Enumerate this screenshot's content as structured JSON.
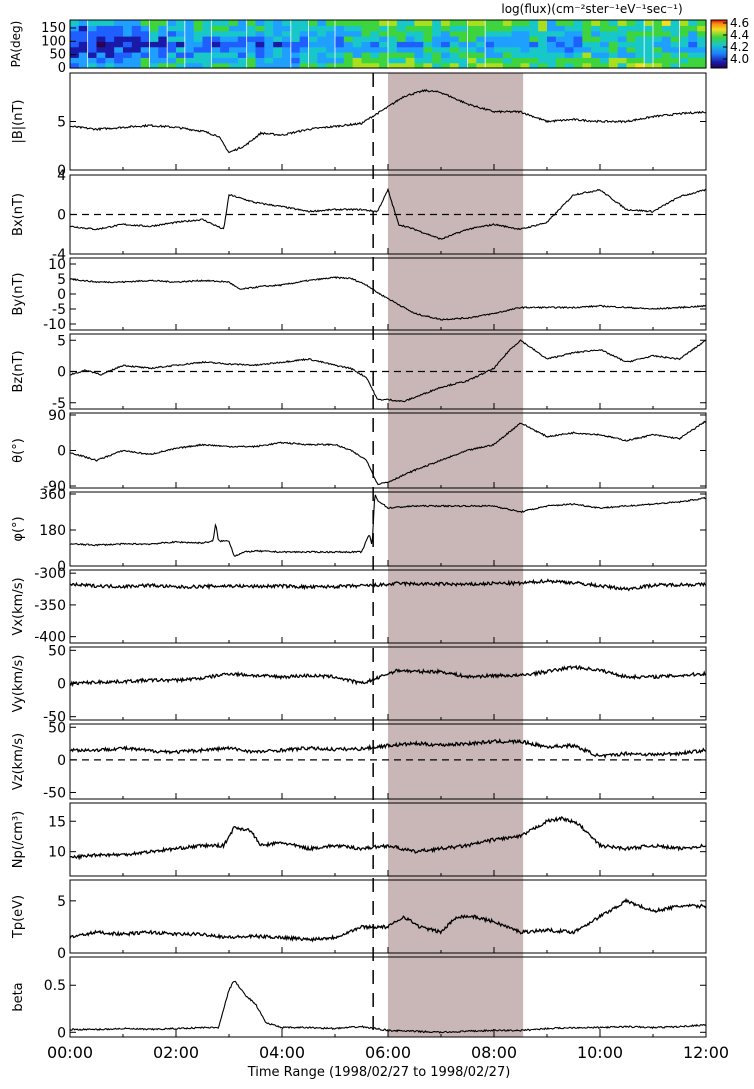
{
  "figure": {
    "colorbar_title": "log(flux)(cm⁻²ster⁻¹eV⁻¹sec⁻¹)",
    "colorbar_ticks": [
      4.0,
      4.2,
      4.4,
      4.6
    ],
    "colorbar_range": [
      3.85,
      4.65
    ],
    "xlabel": "Time Range (1998/02/27 to 1998/02/27)",
    "x_ticks": [
      "00:00",
      "02:00",
      "04:00",
      "06:00",
      "08:00",
      "10:00",
      "12:00"
    ],
    "x_range_hours": [
      0,
      12
    ],
    "shaded_interval_hours": [
      6.0,
      8.55
    ],
    "dashed_line_hour": 5.72
  },
  "chart_data": [
    {
      "type": "heatmap",
      "ylabel": "PA(deg)",
      "ylim": [
        0,
        180
      ],
      "yticks": [
        0,
        50,
        100,
        150
      ],
      "description_values": "pitch-angle distribution of electron flux, log scale 3.9–4.6"
    },
    {
      "type": "line",
      "ylabel": "|B|(nT)",
      "ylim": [
        0,
        10
      ],
      "yticks": [
        0,
        5
      ],
      "x": [
        0,
        0.5,
        1,
        1.5,
        2,
        2.5,
        2.8,
        3.0,
        3.3,
        3.6,
        4,
        4.5,
        5,
        5.5,
        5.7,
        6,
        6.3,
        6.7,
        7,
        7.5,
        8,
        8.5,
        9,
        9.5,
        10,
        10.5,
        11,
        11.5,
        12
      ],
      "y": [
        4.5,
        4.2,
        4.4,
        4.6,
        4.4,
        4.0,
        3.5,
        1.8,
        2.5,
        3.8,
        3.6,
        4.2,
        4.5,
        4.8,
        5.5,
        6.5,
        7.6,
        8.2,
        8.0,
        6.8,
        6.0,
        6.0,
        5.0,
        5.2,
        5.0,
        5.0,
        5.5,
        5.8,
        6.0
      ]
    },
    {
      "type": "line",
      "ylabel": "Bx(nT)",
      "ylim": [
        -4,
        4
      ],
      "yticks": [
        -4,
        0,
        4
      ],
      "zero_line": true,
      "x": [
        0,
        0.5,
        1,
        1.5,
        2,
        2.5,
        2.9,
        3.0,
        3.5,
        4,
        4.5,
        5,
        5.5,
        5.8,
        6.0,
        6.2,
        6.5,
        7,
        7.5,
        8,
        8.5,
        9,
        9.5,
        10,
        10.5,
        11,
        11.5,
        12
      ],
      "y": [
        -1.2,
        -1.5,
        -1.0,
        -1.2,
        -0.8,
        -0.5,
        -1.5,
        2.0,
        1.2,
        0.8,
        0.3,
        0.5,
        0.5,
        0.3,
        2.5,
        -1.0,
        -1.5,
        -2.5,
        -1.5,
        -1.0,
        -1.5,
        -0.8,
        2.0,
        2.5,
        0.5,
        0.3,
        1.8,
        2.5
      ]
    },
    {
      "type": "line",
      "ylabel": "By(nT)",
      "ylim": [
        -12,
        12
      ],
      "yticks": [
        -10,
        -5,
        0,
        5,
        10
      ],
      "x": [
        0,
        0.5,
        1,
        1.5,
        2,
        2.5,
        3.0,
        3.2,
        3.6,
        4,
        4.5,
        5,
        5.3,
        5.6,
        5.8,
        6.0,
        6.5,
        7,
        7.5,
        8,
        8.5,
        9,
        9.5,
        10,
        10.5,
        11,
        11.5,
        12
      ],
      "y": [
        5,
        4,
        4,
        4.5,
        4,
        4.5,
        4,
        1.5,
        2.5,
        3,
        4.5,
        5.5,
        5.2,
        3.0,
        0.5,
        -1.5,
        -6.5,
        -8.5,
        -8.0,
        -6.5,
        -4.5,
        -4.5,
        -4.5,
        -4.0,
        -4.5,
        -5.0,
        -4.5,
        -4.0
      ]
    },
    {
      "type": "line",
      "ylabel": "Bz(nT)",
      "ylim": [
        -6,
        6
      ],
      "yticks": [
        -5,
        0,
        5
      ],
      "zero_line": true,
      "x": [
        0,
        0.3,
        0.6,
        1,
        1.5,
        2,
        2.5,
        3,
        3.5,
        4,
        4.5,
        5,
        5.3,
        5.6,
        5.8,
        6,
        6.3,
        6.7,
        7,
        7.5,
        8,
        8.3,
        8.5,
        9,
        9.5,
        10,
        10.5,
        11,
        11.5,
        12
      ],
      "y": [
        -0.5,
        0.2,
        -0.5,
        1.0,
        0.5,
        1.0,
        1.5,
        1.2,
        1.0,
        1.5,
        2.0,
        1.0,
        0.5,
        -1.0,
        -4.5,
        -4.5,
        -4.8,
        -3.5,
        -2.5,
        -1.5,
        0.5,
        3.5,
        5.0,
        2.0,
        3.0,
        3.5,
        1.5,
        2.5,
        2.0,
        5.0
      ]
    },
    {
      "type": "line",
      "ylabel": "θ(°)",
      "ylim": [
        -95,
        95
      ],
      "yticks": [
        -90,
        0,
        90
      ],
      "x": [
        0,
        0.5,
        1,
        1.5,
        2,
        2.5,
        3,
        3.5,
        4,
        4.5,
        5,
        5.3,
        5.6,
        5.8,
        6,
        6.5,
        7,
        7.5,
        8,
        8.5,
        9,
        9.5,
        10,
        10.5,
        11,
        11.5,
        12
      ],
      "y": [
        -5,
        -25,
        0,
        -10,
        5,
        15,
        10,
        10,
        20,
        15,
        15,
        0,
        -25,
        -85,
        -80,
        -50,
        -25,
        0,
        15,
        70,
        35,
        45,
        40,
        25,
        40,
        30,
        75
      ]
    },
    {
      "type": "line",
      "ylabel": "φ(°)",
      "ylim": [
        0,
        370
      ],
      "yticks": [
        0,
        180,
        360
      ],
      "x": [
        0,
        0.5,
        1,
        1.5,
        2,
        2.5,
        2.7,
        2.75,
        2.8,
        3.0,
        3.1,
        3.3,
        3.5,
        4,
        4.5,
        5,
        5.5,
        5.65,
        5.7,
        5.75,
        5.8,
        6,
        6.5,
        7,
        7.5,
        8,
        8.5,
        9,
        9.5,
        10,
        10.5,
        11,
        11.5,
        12
      ],
      "y": [
        110,
        105,
        110,
        110,
        120,
        115,
        125,
        215,
        125,
        125,
        50,
        70,
        75,
        70,
        70,
        70,
        70,
        160,
        100,
        360,
        330,
        290,
        300,
        300,
        300,
        300,
        270,
        300,
        310,
        290,
        300,
        310,
        320,
        340
      ]
    },
    {
      "type": "line",
      "ylabel": "Vx(km/s)",
      "ylim": [
        -410,
        -295
      ],
      "yticks": [
        -400,
        -350,
        -300
      ],
      "x": [
        0,
        0.5,
        1,
        1.5,
        2,
        2.5,
        3,
        3.5,
        4,
        4.5,
        5,
        5.5,
        6,
        6.2,
        6.5,
        7,
        7.5,
        8,
        8.5,
        9,
        9.5,
        10,
        10.5,
        11,
        11.5,
        12
      ],
      "y": [
        -318,
        -320,
        -321,
        -319,
        -322,
        -321,
        -320,
        -321,
        -320,
        -322,
        -321,
        -320,
        -318,
        -316,
        -317,
        -317,
        -318,
        -316,
        -316,
        -312,
        -315,
        -320,
        -325,
        -319,
        -318,
        -318
      ]
    },
    {
      "type": "line",
      "ylabel": "Vy(km/s)",
      "ylim": [
        -55,
        55
      ],
      "yticks": [
        -50,
        0,
        50
      ],
      "x": [
        0,
        0.5,
        1,
        1.5,
        2,
        2.5,
        3,
        3.5,
        4,
        4.5,
        5,
        5.5,
        5.8,
        6,
        6.2,
        6.5,
        7,
        7.5,
        8,
        8.5,
        9,
        9.5,
        10,
        10.5,
        11,
        11.5,
        12
      ],
      "y": [
        0,
        2,
        3,
        5,
        5,
        8,
        15,
        12,
        10,
        12,
        10,
        0,
        8,
        15,
        20,
        18,
        18,
        10,
        12,
        12,
        18,
        25,
        20,
        10,
        10,
        12,
        15
      ]
    },
    {
      "type": "line",
      "ylabel": "Vz(km/s)",
      "ylim": [
        -60,
        55
      ],
      "yticks": [
        -50,
        0,
        50
      ],
      "zero_line": true,
      "x": [
        0,
        0.5,
        1,
        1.5,
        2,
        2.5,
        3,
        3.5,
        4,
        4.5,
        5,
        5.5,
        6,
        6.5,
        7,
        7.5,
        8,
        8.5,
        9,
        9.5,
        10,
        10.5,
        11,
        11.5,
        12
      ],
      "y": [
        15,
        15,
        18,
        14,
        12,
        15,
        18,
        12,
        15,
        18,
        16,
        17,
        22,
        25,
        23,
        25,
        28,
        28,
        20,
        22,
        5,
        10,
        8,
        10,
        15
      ]
    },
    {
      "type": "line",
      "ylabel": "Np(/cm³)",
      "ylim": [
        6,
        18
      ],
      "yticks": [
        10,
        15
      ],
      "x": [
        0,
        0.5,
        1,
        1.5,
        2,
        2.5,
        2.9,
        3.1,
        3.4,
        3.6,
        4,
        4.5,
        5,
        5.5,
        6,
        6.5,
        7,
        7.5,
        8,
        8.5,
        9,
        9.3,
        9.6,
        10,
        10.5,
        11,
        11.5,
        12
      ],
      "y": [
        9,
        9.5,
        9.5,
        10,
        10.5,
        11,
        11,
        14,
        13.5,
        11,
        11.5,
        10.5,
        11,
        10.5,
        11,
        10,
        10.5,
        11,
        12,
        12.5,
        15,
        15.5,
        14.5,
        11,
        10.5,
        11,
        10.5,
        11
      ]
    },
    {
      "type": "line",
      "ylabel": "Tp(eV)",
      "ylim": [
        0,
        7
      ],
      "yticks": [
        0,
        5
      ],
      "x": [
        0,
        0.5,
        1,
        1.5,
        2,
        2.5,
        3,
        3.5,
        4,
        4.5,
        5,
        5.5,
        6,
        6.3,
        6.6,
        7,
        7.3,
        7.6,
        8,
        8.5,
        9,
        9.5,
        10,
        10.5,
        11,
        11.5,
        12
      ],
      "y": [
        1.5,
        2.0,
        1.8,
        2.0,
        1.8,
        1.8,
        1.5,
        1.6,
        1.5,
        1.3,
        1.5,
        2.5,
        2.5,
        3.5,
        2.5,
        2.0,
        3.5,
        3.5,
        3.0,
        2.0,
        2.2,
        2.0,
        3.5,
        5.0,
        4.0,
        4.5,
        4.5
      ]
    },
    {
      "type": "line",
      "ylabel": "beta",
      "ylim": [
        -0.05,
        0.8
      ],
      "yticks": [
        0.0,
        0.5
      ],
      "x": [
        0,
        0.5,
        1,
        1.5,
        2,
        2.5,
        2.8,
        3.0,
        3.1,
        3.3,
        3.5,
        3.7,
        4,
        4.5,
        5,
        5.5,
        6,
        6.5,
        7,
        7.5,
        8,
        8.5,
        9,
        9.5,
        10,
        10.5,
        11,
        11.5,
        12
      ],
      "y": [
        0.03,
        0.03,
        0.04,
        0.03,
        0.04,
        0.05,
        0.05,
        0.45,
        0.55,
        0.4,
        0.3,
        0.1,
        0.05,
        0.05,
        0.04,
        0.06,
        0.02,
        0.01,
        0.0,
        0.01,
        0.02,
        0.02,
        0.04,
        0.05,
        0.05,
        0.06,
        0.05,
        0.06,
        0.08
      ]
    }
  ]
}
